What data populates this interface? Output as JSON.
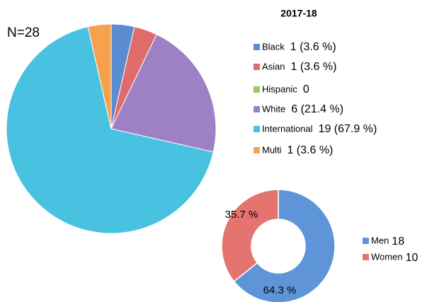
{
  "chart_data": [
    {
      "type": "pie",
      "title": "2017-18",
      "annotation": "N=28",
      "categories": [
        "Black",
        "Asian",
        "Hispanic",
        "White",
        "International",
        "Multi"
      ],
      "values": [
        1,
        1,
        0,
        6,
        19,
        1
      ],
      "value_labels": [
        "1 (3.6 %)",
        "1 (3.6 %)",
        "0",
        "6 (21.4 %)",
        "19 (67.9 %)",
        "1 (3.6 %)"
      ],
      "colors": [
        "#5b8bd0",
        "#e06b6b",
        "#9bc95a",
        "#9e80c4",
        "#48c2e0",
        "#f5a24f"
      ]
    },
    {
      "type": "donut",
      "categories": [
        "Men",
        "Women"
      ],
      "values": [
        18,
        10
      ],
      "slice_labels": [
        "64.3 %",
        "35.7 %"
      ],
      "colors": [
        "#5e95d9",
        "#e57370"
      ]
    }
  ]
}
